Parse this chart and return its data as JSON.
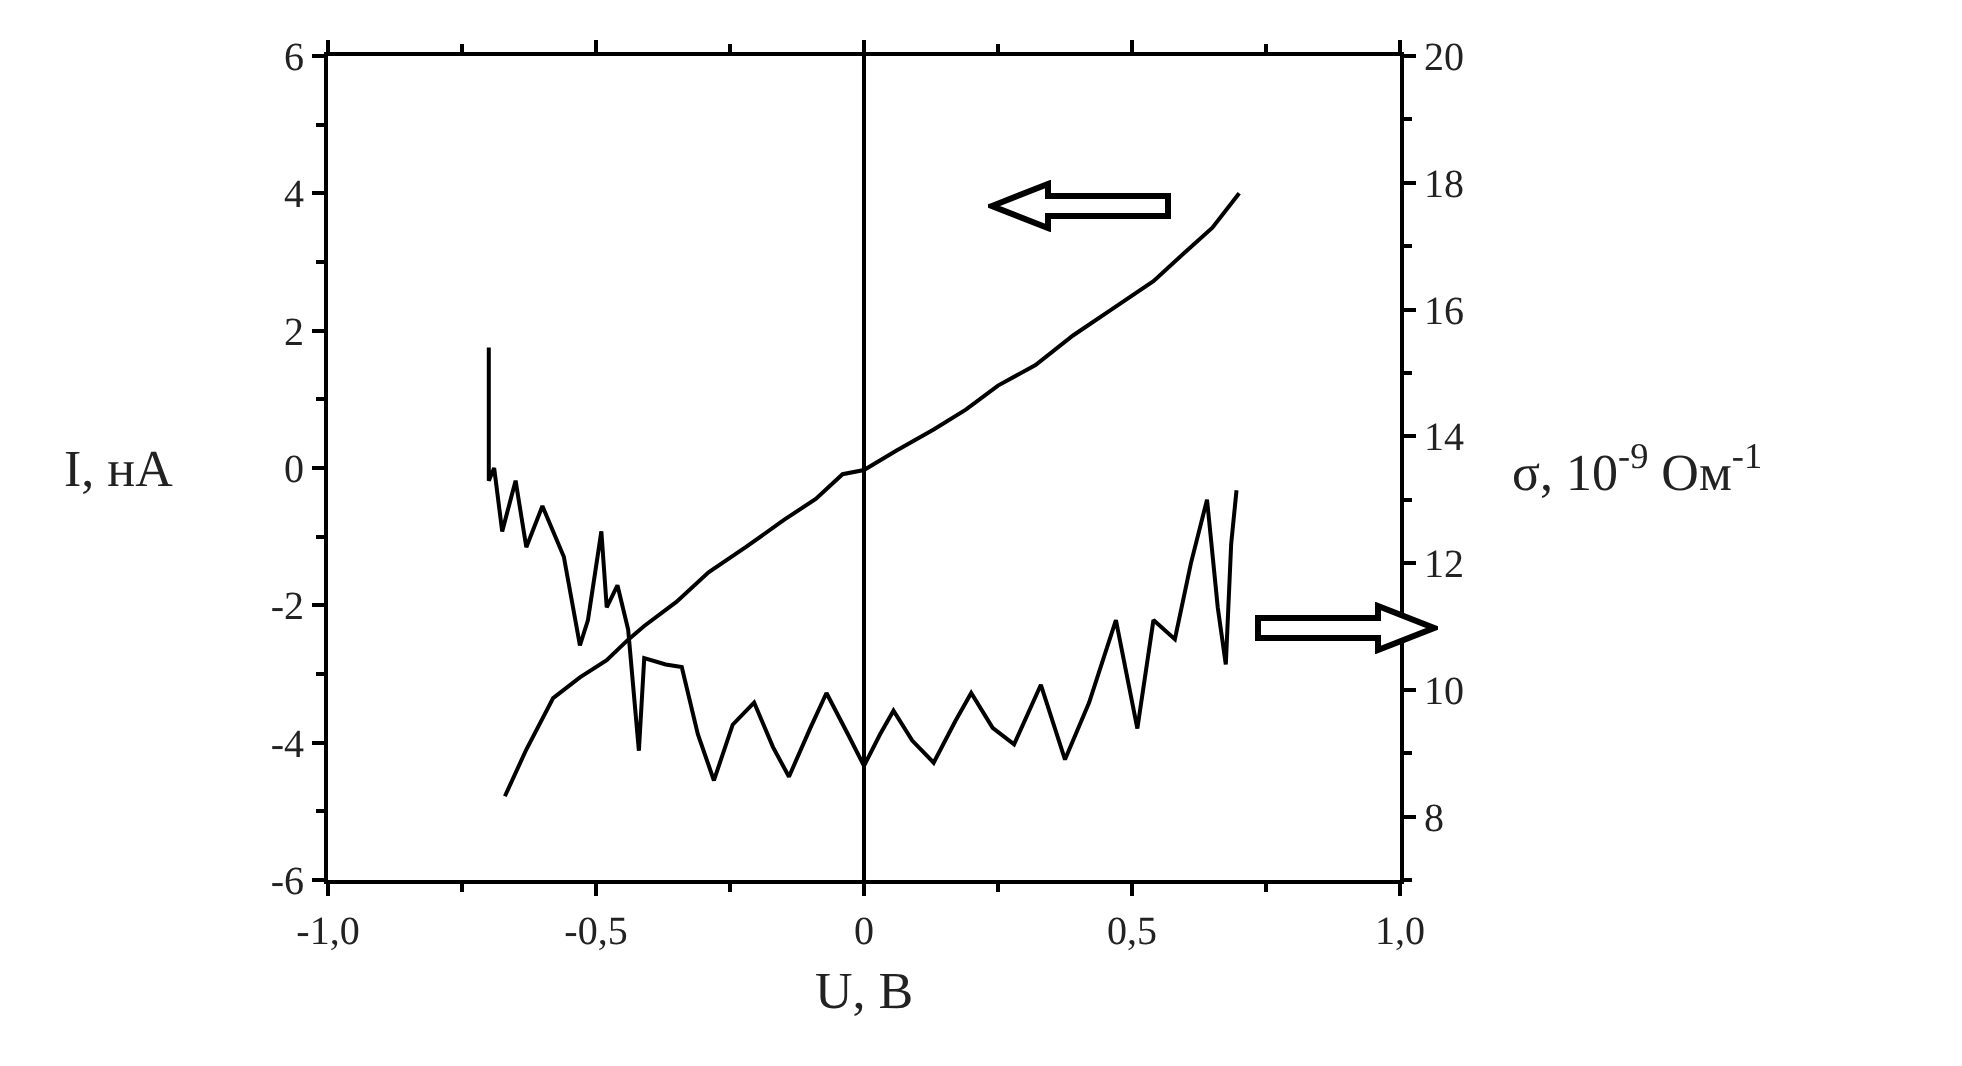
{
  "chart_data": {
    "type": "line",
    "xlabel": "U, В",
    "ylabel": "I, нА",
    "y2label": "σ, 10$^{-9}$ Ом$^{-1}$",
    "xlim": [
      -1,
      1
    ],
    "xticks": [
      {
        "value": -1,
        "label": "-1,0"
      },
      {
        "value": -0.5,
        "label": "-0,5"
      },
      {
        "value": 0,
        "label": "0"
      },
      {
        "value": 0.5,
        "label": "0,5"
      },
      {
        "value": 1,
        "label": "1,0"
      }
    ],
    "ylim": [
      -6,
      6
    ],
    "yticks": [
      -6,
      -4,
      -2,
      0,
      2,
      4,
      6
    ],
    "y2lim": [
      7,
      20
    ],
    "y2ticks": [
      8,
      10,
      12,
      14,
      16,
      18,
      20
    ],
    "grid": false,
    "marker": "none",
    "line_style": "solid",
    "ref_lines": [
      {
        "axis": "x",
        "value": 0,
        "color": "#000000"
      }
    ],
    "series": [
      {
        "color": "#000000",
        "axis": "y",
        "x": [
          -0.67,
          -0.63,
          -0.58,
          -0.53,
          -0.48,
          -0.44,
          -0.41,
          -0.35,
          -0.29,
          -0.22,
          -0.15,
          -0.09,
          -0.04,
          0,
          0.06,
          0.13,
          0.19,
          0.25,
          0.32,
          0.39,
          0.46,
          0.54,
          0.6,
          0.65,
          0.7
        ],
        "values": [
          -4.78,
          -4.1,
          -3.35,
          -3.05,
          -2.8,
          -2.5,
          -2.3,
          -1.95,
          -1.52,
          -1.15,
          -0.76,
          -0.45,
          -0.09,
          -0.03,
          0.25,
          0.56,
          0.85,
          1.2,
          1.5,
          1.93,
          2.3,
          2.72,
          3.15,
          3.5,
          4.0
        ]
      },
      {
        "color": "#000000",
        "axis": "y2",
        "x": [
          -0.7,
          -0.7,
          -0.69,
          -0.675,
          -0.65,
          -0.63,
          -0.6,
          -0.56,
          -0.53,
          -0.515,
          -0.49,
          -0.48,
          -0.46,
          -0.44,
          -0.42,
          -0.41,
          -0.37,
          -0.34,
          -0.31,
          -0.28,
          -0.245,
          -0.205,
          -0.17,
          -0.14,
          -0.1,
          -0.07,
          -0.03,
          0,
          0.03,
          0.055,
          0.09,
          0.13,
          0.17,
          0.2,
          0.24,
          0.28,
          0.33,
          0.375,
          0.42,
          0.47,
          0.51,
          0.54,
          0.58,
          0.61,
          0.64,
          0.66,
          0.675,
          0.685,
          0.695
        ],
        "values": [
          15.4,
          13.3,
          13.5,
          12.5,
          13.3,
          12.25,
          12.9,
          12.1,
          10.7,
          11.1,
          12.5,
          11.3,
          11.65,
          10.95,
          9.04,
          10.5,
          10.4,
          10.36,
          9.3,
          8.57,
          9.45,
          9.8,
          9.1,
          8.63,
          9.4,
          9.95,
          9.3,
          8.8,
          9.3,
          9.67,
          9.2,
          8.85,
          9.5,
          9.95,
          9.4,
          9.14,
          10.08,
          8.9,
          9.8,
          11.1,
          9.39,
          11.1,
          10.8,
          12.0,
          13.0,
          11.3,
          10.4,
          12.3,
          13.15
        ]
      }
    ]
  }
}
